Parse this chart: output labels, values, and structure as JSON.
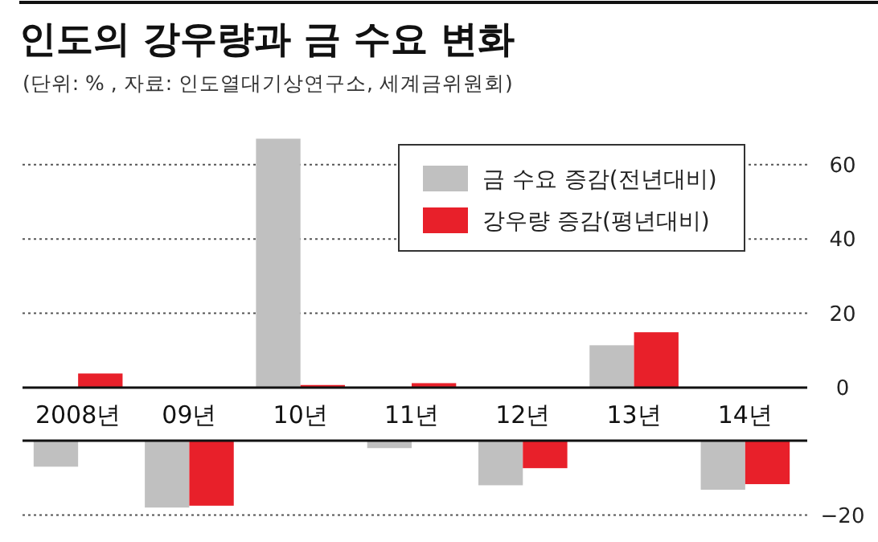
{
  "chart_data": [
    {
      "type": "bar",
      "title": "인도의 강우량과 금 수요 변화",
      "subtitle": "(단위: % , 자료: 인도열대기상연구소, 세계금위원회)",
      "categories": [
        "2008년",
        "09년",
        "10년",
        "11년",
        "12년",
        "13년",
        "14년"
      ],
      "series": [
        {
          "name": "금 수요 증감(전년대비)",
          "color": "#c0c0c0",
          "values": [
            null,
            null,
            67,
            null,
            null,
            11.4,
            null
          ]
        },
        {
          "name": "강우량 증감(평년대비)",
          "color": "#e8202a",
          "values": [
            3.8,
            null,
            0.7,
            1.2,
            null,
            14.9,
            null
          ]
        }
      ],
      "ylim": [
        0,
        68
      ],
      "yticks": [
        0,
        20,
        40,
        60
      ],
      "grid": "y",
      "legend": "top right"
    },
    {
      "type": "bar",
      "categories": [
        null,
        null,
        null,
        null,
        null,
        null,
        null
      ],
      "series": [
        {
          "color": "#c0c0c0",
          "values": [
            -7,
            -18,
            null,
            -2,
            -12,
            null,
            -13.2
          ]
        },
        {
          "color": "#e8202a",
          "values": [
            null,
            -17.5,
            null,
            null,
            -7.4,
            null,
            -11.7
          ]
        }
      ],
      "ylim": [
        -20,
        0
      ],
      "yticks": [
        -20
      ],
      "grid": "y",
      "tick_labels": "y"
    }
  ]
}
